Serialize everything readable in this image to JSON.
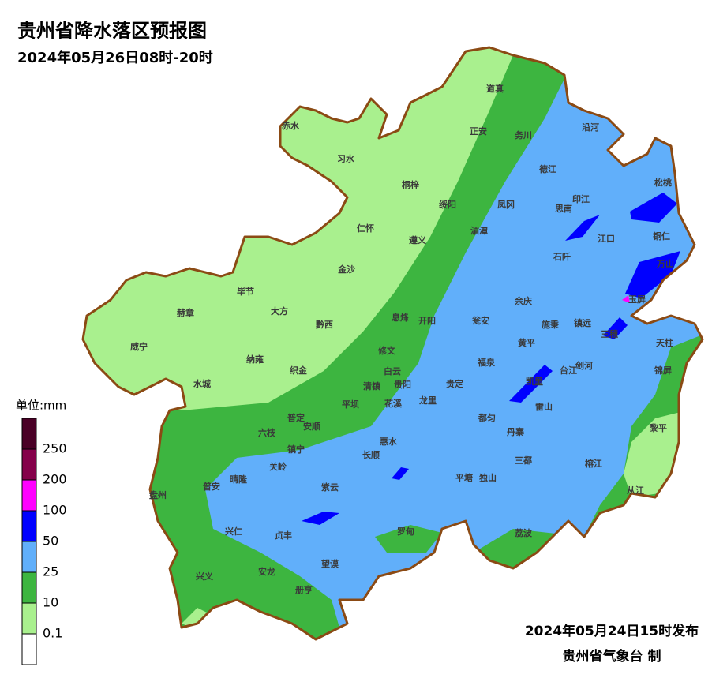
{
  "header": {
    "title": "贵州省降水落区预报图",
    "subtitle": "2024年05月26日08时-20时"
  },
  "legend": {
    "unit": "单位:mm",
    "colors": [
      "#4a0026",
      "#85004a",
      "#ff00ff",
      "#0000ff",
      "#61affa",
      "#3db540",
      "#a9f08e",
      "#ffffff"
    ],
    "labels": [
      "250",
      "200",
      "100",
      "50",
      "25",
      "10",
      "0.1"
    ]
  },
  "map": {
    "places": [
      "道真",
      "赤水",
      "正安",
      "务川",
      "沿河",
      "习水",
      "桐梓",
      "德江",
      "松桃",
      "绥阳",
      "凤冈",
      "印江",
      "思南",
      "仁怀",
      "湄潭",
      "江口",
      "铜仁",
      "遵义",
      "石阡",
      "万山",
      "金沙",
      "毕节",
      "余庆",
      "玉屏",
      "大方",
      "赫章",
      "黔西",
      "息烽",
      "开阳",
      "瓮安",
      "施秉",
      "镇远",
      "三穗",
      "天柱",
      "威宁",
      "黄平",
      "修文",
      "纳雍",
      "织金",
      "福泉",
      "台江",
      "剑河",
      "锦屏",
      "白云",
      "清镇",
      "贵阳",
      "凯里",
      "贵定",
      "水城",
      "平坝",
      "花溪",
      "龙里",
      "雷山",
      "都匀",
      "普定",
      "安顺",
      "六枝",
      "丹寨",
      "黎平",
      "镇宁",
      "惠水",
      "长顺",
      "三都",
      "关岭",
      "晴隆",
      "平塘",
      "独山",
      "榕江",
      "普安",
      "紫云",
      "盘州",
      "从江",
      "兴仁",
      "贞丰",
      "罗甸",
      "荔波",
      "兴义",
      "安龙",
      "望谟",
      "册亨"
    ]
  },
  "footer": {
    "issued": "2024年05月24日15时发布",
    "agency": "贵州省气象台 制"
  }
}
